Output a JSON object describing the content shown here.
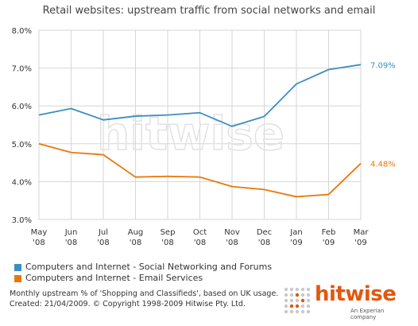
{
  "chart_data": {
    "type": "line",
    "title": "Retail websites: upstream traffic from social networks and email",
    "categories": [
      [
        "May",
        "'08"
      ],
      [
        "Jun",
        "'08"
      ],
      [
        "Jul",
        "'08"
      ],
      [
        "Aug",
        "'08"
      ],
      [
        "Sep",
        "'08"
      ],
      [
        "Oct",
        "'08"
      ],
      [
        "Nov",
        "'08"
      ],
      [
        "Dec",
        "'08"
      ],
      [
        "Jan",
        "'09"
      ],
      [
        "Feb",
        "'09"
      ],
      [
        "Mar",
        "'09"
      ]
    ],
    "yticks": [
      "3.0%",
      "4.0%",
      "5.0%",
      "6.0%",
      "7.0%",
      "8.0%"
    ],
    "ylim": [
      3.0,
      8.0
    ],
    "grid": true,
    "series": [
      {
        "name": "Computers and Internet - Social Networking and Forums",
        "color": "#3a8fc1",
        "values": [
          5.76,
          5.93,
          5.63,
          5.73,
          5.76,
          5.82,
          5.46,
          5.72,
          6.58,
          6.96,
          7.09
        ],
        "end_label": "7.09%"
      },
      {
        "name": "Computers and Internet - Email Services",
        "color": "#e8780e",
        "values": [
          5.0,
          4.77,
          4.71,
          4.12,
          4.14,
          4.12,
          3.87,
          3.79,
          3.6,
          3.66,
          4.48
        ],
        "end_label": "4.48%"
      }
    ]
  },
  "notes": {
    "line1": "Monthly upstream % of 'Shopping and Classifieds', based on UK usage.",
    "line2": "Created: 21/04/2009. © Copyright 1998-2009 Hitwise Pty. Ltd."
  },
  "watermark": "hitwise",
  "logo": {
    "name": "hitwise",
    "tagline": "An Experian company",
    "color": "#e2570f"
  }
}
